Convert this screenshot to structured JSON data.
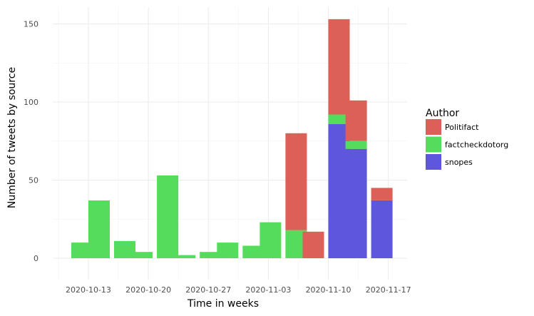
{
  "chart_data": {
    "type": "bar",
    "stacked": true,
    "xlabel": "Time in weeks",
    "ylabel": "Number of tweets by source",
    "ylim": [
      -10,
      160
    ],
    "y_ticks": [
      0,
      50,
      100,
      150
    ],
    "x_ticks": [
      "2020-10-13",
      "2020-10-20",
      "2020-10-27",
      "2020-11-03",
      "2020-11-10",
      "2020-11-17"
    ],
    "grid": true,
    "legend": {
      "title": "Author",
      "position": "right"
    },
    "bin_width_days": 2.5,
    "x": [
      "2020-10-11",
      "2020-10-13",
      "2020-10-16",
      "2020-10-18",
      "2020-10-21",
      "2020-10-23",
      "2020-10-26",
      "2020-10-28",
      "2020-10-31",
      "2020-11-02",
      "2020-11-05",
      "2020-11-07",
      "2020-11-10",
      "2020-11-12",
      "2020-11-15"
    ],
    "series": [
      {
        "name": "snopes",
        "color": "#5e57de",
        "values": [
          0,
          0,
          0,
          0,
          0,
          0,
          0,
          0,
          0,
          0,
          0,
          0,
          86,
          70,
          37
        ]
      },
      {
        "name": "factcheckdotorg",
        "color": "#55dc5d",
        "values": [
          10,
          37,
          11,
          4,
          53,
          2,
          4,
          10,
          8,
          23,
          18,
          0,
          6,
          5,
          0
        ]
      },
      {
        "name": "Politifact",
        "color": "#dc5f58",
        "values": [
          0,
          0,
          0,
          0,
          0,
          0,
          0,
          0,
          0,
          0,
          62,
          17,
          61,
          26,
          8
        ]
      }
    ]
  }
}
